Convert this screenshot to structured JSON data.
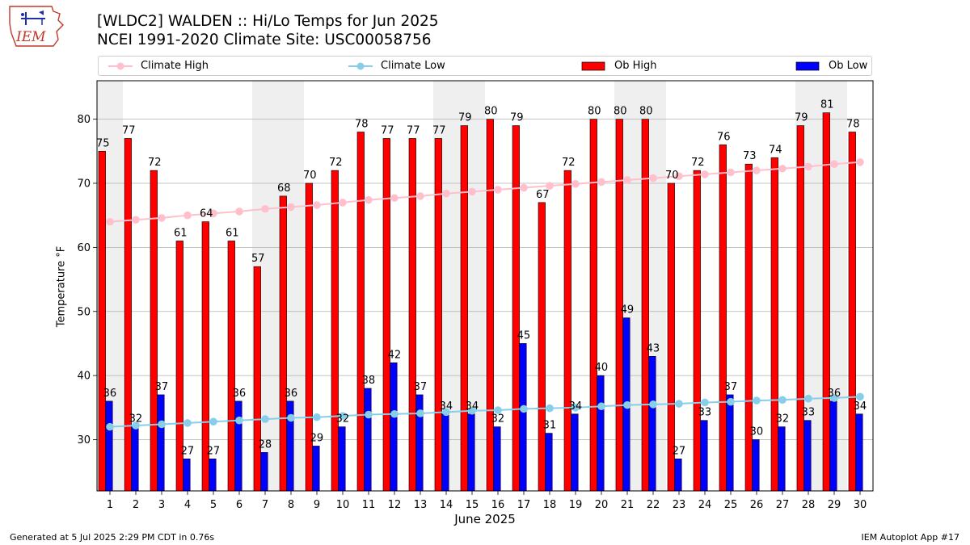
{
  "header": {
    "title_line1": "[WLDC2] WALDEN :: Hi/Lo Temps for Jun 2025",
    "title_line2": "NCEI 1991-2020 Climate Site: USC00058756",
    "logo_text": "IEM"
  },
  "footer": {
    "generated": "Generated at 5 Jul 2025 2:29 PM CDT in 0.76s",
    "app": "IEM Autoplot App #17"
  },
  "colors": {
    "ob_high": "#ff0000",
    "ob_low": "#0000ff",
    "climate_high": "#ffc0cb",
    "climate_low": "#87ceeb",
    "weekend_shade": "#efefef",
    "grid": "#b0b0b0"
  },
  "chart_data": {
    "type": "bar",
    "xlabel": "June 2025",
    "ylabel": "Temperature °F",
    "ylim": [
      22,
      86
    ],
    "yticks": [
      30,
      40,
      50,
      60,
      70,
      80
    ],
    "grid": "horizontal",
    "legend_placement": "top",
    "categories": [
      "1",
      "2",
      "3",
      "4",
      "5",
      "6",
      "7",
      "8",
      "9",
      "10",
      "11",
      "12",
      "13",
      "14",
      "15",
      "16",
      "17",
      "18",
      "19",
      "20",
      "21",
      "22",
      "23",
      "24",
      "25",
      "26",
      "27",
      "28",
      "29",
      "30"
    ],
    "shaded_days": [
      1,
      7,
      8,
      14,
      15,
      21,
      22,
      28,
      29
    ],
    "series": [
      {
        "name": "Ob High",
        "kind": "bar",
        "values": [
          75,
          77,
          72,
          61,
          64,
          61,
          57,
          68,
          70,
          72,
          78,
          77,
          77,
          77,
          79,
          80,
          79,
          67,
          72,
          80,
          80,
          80,
          70,
          72,
          76,
          73,
          74,
          79,
          81,
          78
        ]
      },
      {
        "name": "Ob Low",
        "kind": "bar",
        "values": [
          36,
          32,
          37,
          27,
          27,
          36,
          28,
          36,
          29,
          32,
          38,
          42,
          37,
          34,
          34,
          32,
          45,
          31,
          34,
          40,
          49,
          43,
          27,
          33,
          37,
          30,
          32,
          33,
          36,
          34
        ]
      },
      {
        "name": "Climate High",
        "kind": "line",
        "values": [
          64.0,
          64.3,
          64.6,
          65.0,
          65.3,
          65.6,
          66.0,
          66.3,
          66.6,
          67.0,
          67.4,
          67.7,
          68.0,
          68.4,
          68.7,
          69.0,
          69.3,
          69.6,
          69.9,
          70.2,
          70.5,
          70.8,
          71.1,
          71.4,
          71.7,
          72.0,
          72.3,
          72.6,
          73.0,
          73.3
        ]
      },
      {
        "name": "Climate Low",
        "kind": "line",
        "values": [
          32.0,
          32.2,
          32.4,
          32.6,
          32.8,
          33.0,
          33.2,
          33.4,
          33.5,
          33.7,
          33.9,
          34.0,
          34.1,
          34.3,
          34.5,
          34.6,
          34.8,
          34.9,
          35.0,
          35.2,
          35.4,
          35.5,
          35.6,
          35.8,
          35.9,
          36.1,
          36.2,
          36.4,
          36.5,
          36.7
        ]
      }
    ]
  }
}
